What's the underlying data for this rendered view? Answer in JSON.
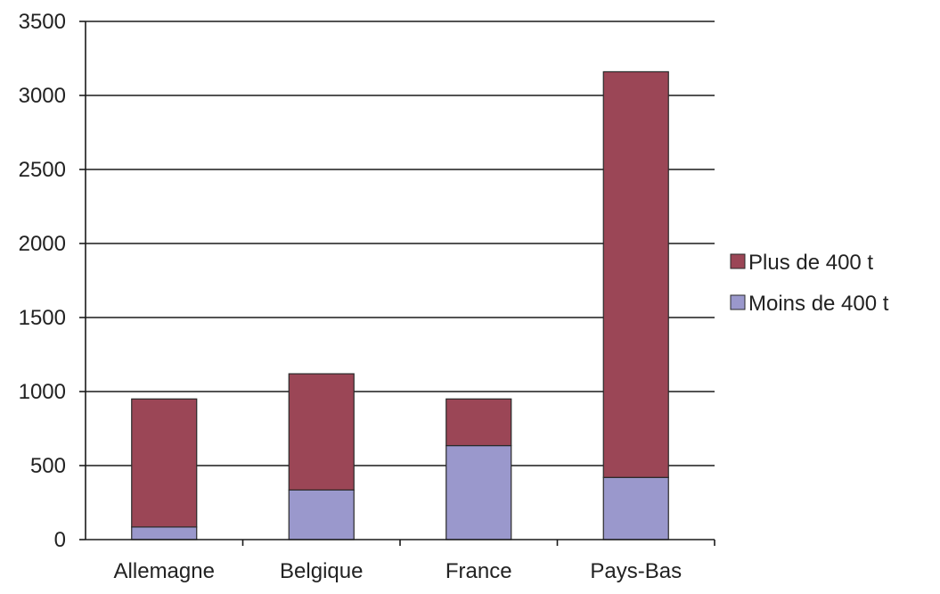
{
  "chart_data": {
    "type": "bar",
    "stacked": true,
    "categories": [
      "Allemagne",
      "Belgique",
      "France",
      "Pays-Bas"
    ],
    "series": [
      {
        "name": "Moins de 400 t",
        "values": [
          85,
          335,
          635,
          420
        ],
        "color": "#9a98cc"
      },
      {
        "name": "Plus de 400 t",
        "values": [
          865,
          785,
          315,
          2740
        ],
        "color": "#9b4656"
      }
    ],
    "ylim": [
      0,
      3500
    ],
    "yticks": [
      "0",
      "500",
      "1000",
      "1500",
      "2000",
      "2500",
      "3000",
      "3500"
    ],
    "grid": true,
    "legend": {
      "position": "right",
      "order": [
        "Plus de 400 t",
        "Moins de 400 t"
      ]
    }
  }
}
